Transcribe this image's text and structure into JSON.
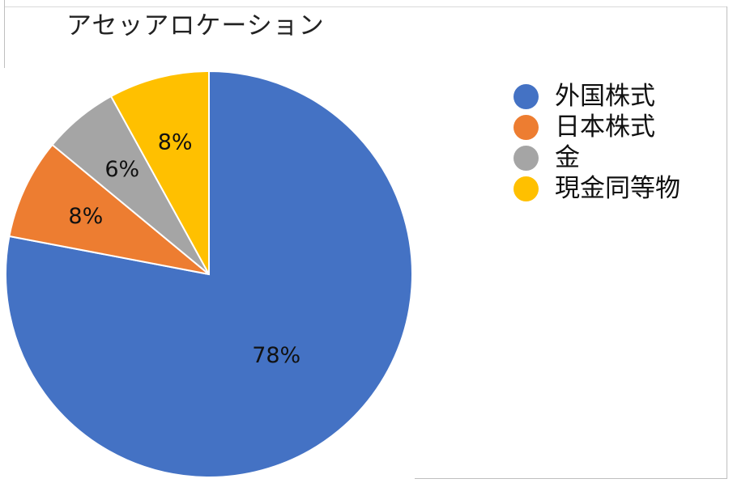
{
  "chart_data": {
    "type": "pie",
    "title": "アセッアロケーション",
    "slices": [
      {
        "label": "外国株式",
        "value": 78,
        "value_label": "78%",
        "color": "#4472C4"
      },
      {
        "label": "日本株式",
        "value": 8,
        "value_label": "8%",
        "color": "#ED7D31"
      },
      {
        "label": "金",
        "value": 6,
        "value_label": "6%",
        "color": "#A5A5A5"
      },
      {
        "label": "現金同等物",
        "value": 8,
        "value_label": "8%",
        "color": "#FFC000"
      }
    ],
    "legend": {
      "placement": "right"
    }
  }
}
